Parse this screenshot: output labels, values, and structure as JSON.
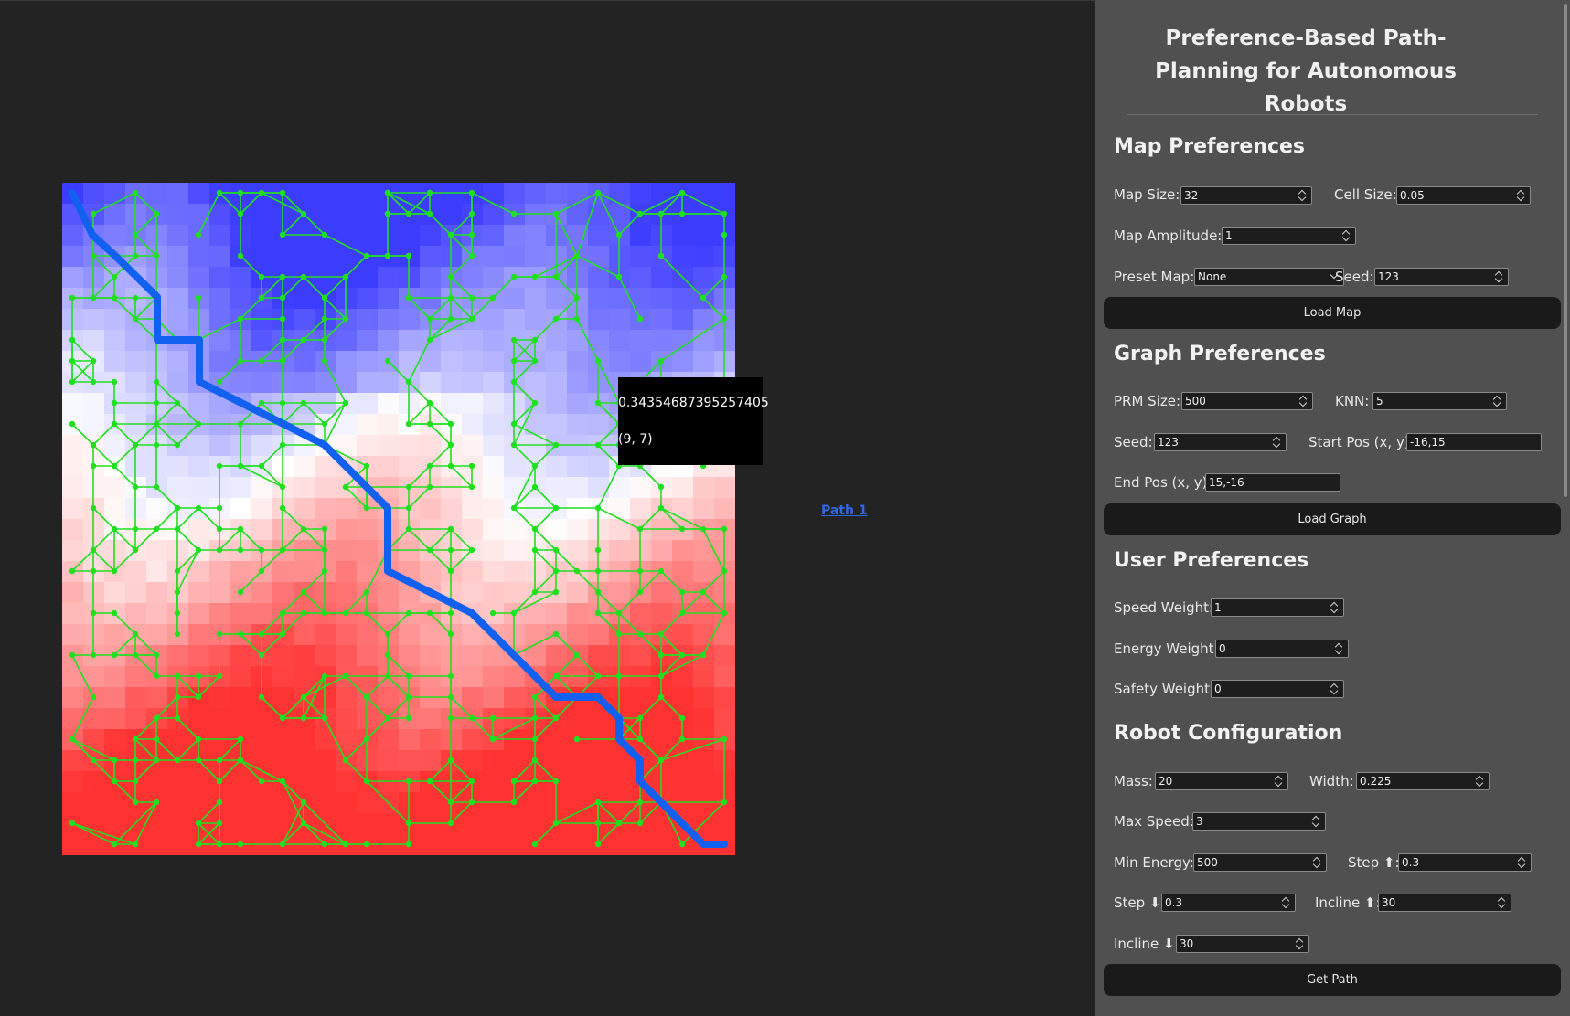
{
  "map": {
    "tooltip_value": "0.34354687395257405",
    "tooltip_coord": "(9, 7)",
    "path_link": "Path 1",
    "colors": {
      "low": "#3c3cff",
      "mid": "#ffffff",
      "high": "#ff3232",
      "graph": "#1fe01f",
      "path": "#1260f0"
    }
  },
  "panel": {
    "title": "Preference-Based Path-Planning for Autonomous Robots",
    "map_prefs": {
      "heading": "Map Preferences",
      "map_size_label": "Map Size:",
      "map_size": "32",
      "cell_size_label": "Cell Size:",
      "cell_size": "0.05",
      "amplitude_label": "Map Amplitude:",
      "amplitude": "1",
      "preset_label": "Preset Map:",
      "preset": "None",
      "seed_label": "Seed:",
      "seed": "123",
      "load_button": "Load Map"
    },
    "graph_prefs": {
      "heading": "Graph Preferences",
      "prm_label": "PRM Size:",
      "prm": "500",
      "knn_label": "KNN:",
      "knn": "5",
      "seed_label": "Seed:",
      "seed": "123",
      "start_label": "Start Pos (x, y):",
      "start": "-16,15",
      "end_label": "End Pos (x, y):",
      "end": "15,-16",
      "load_button": "Load Graph"
    },
    "user_prefs": {
      "heading": "User Preferences",
      "speed_label": "Speed Weight:",
      "speed": "1",
      "energy_label": "Energy Weight:",
      "energy": "0",
      "safety_label": "Safety Weight:",
      "safety": "0"
    },
    "robot": {
      "heading": "Robot Configuration",
      "mass_label": "Mass:",
      "mass": "20",
      "width_label": "Width:",
      "width": "0.225",
      "max_speed_label": "Max Speed:",
      "max_speed": "3",
      "min_energy_label": "Min Energy:",
      "min_energy": "500",
      "step_up_label": "Step ⬆:",
      "step_up": "0.3",
      "step_down_label": "Step ⬇:",
      "step_down": "0.3",
      "incline_up_label": "Incline ⬆:",
      "incline_up": "30",
      "incline_down_label": "Incline ⬇:",
      "incline_down": "30",
      "path_button": "Get Path"
    }
  }
}
